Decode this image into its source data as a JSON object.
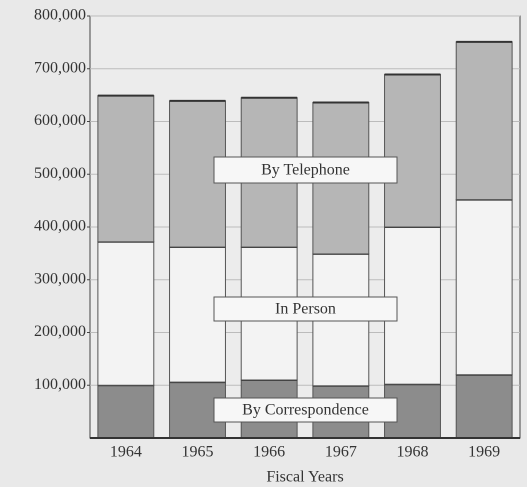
{
  "chart_data": {
    "type": "stacked_bar",
    "x_label": "Fiscal Years",
    "categories": [
      "1964",
      "1965",
      "1966",
      "1967",
      "1968",
      "1969"
    ],
    "series": [
      {
        "name": "By Correspondence",
        "color": "#8c8c8c",
        "values": [
          100000,
          106000,
          110000,
          99000,
          102000,
          120000
        ]
      },
      {
        "name": "In Person",
        "color": "#f3f3f3",
        "values": [
          272000,
          256000,
          252000,
          250000,
          298000,
          332000
        ]
      },
      {
        "name": "By Telephone",
        "color": "#b6b6b6",
        "values": [
          277000,
          277000,
          283000,
          287000,
          289000,
          299000
        ]
      }
    ],
    "ylim": [
      0,
      800000
    ],
    "yticks": [
      {
        "value": 100000,
        "label": "100,000"
      },
      {
        "value": 200000,
        "label": "200,000"
      },
      {
        "value": 300000,
        "label": "300,000"
      },
      {
        "value": 400000,
        "label": "400,000"
      },
      {
        "value": 500000,
        "label": "500,000"
      },
      {
        "value": 600000,
        "label": "600,000"
      },
      {
        "value": 700000,
        "label": "700,000"
      },
      {
        "value": 800000,
        "label": "800,000"
      }
    ],
    "grid": true
  }
}
